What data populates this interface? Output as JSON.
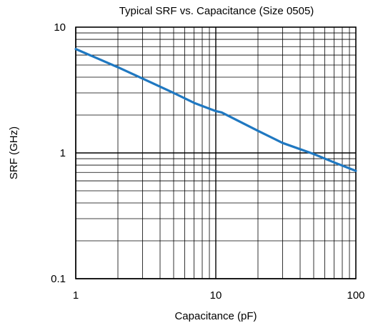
{
  "chart_data": {
    "type": "line",
    "title": "Typical SRF vs. Capacitance (Size 0505)",
    "xlabel": "Capacitance (pF)",
    "ylabel": "SRF (GHz)",
    "xscale": "log",
    "yscale": "log",
    "xlim": [
      1,
      100
    ],
    "ylim": [
      0.1,
      10
    ],
    "grid": true,
    "x_ticks": [
      "1",
      "10",
      "100"
    ],
    "y_ticks": [
      "0.1",
      "1",
      "10"
    ],
    "series": [
      {
        "color": "#1f78c1",
        "x": [
          1,
          2,
          3,
          5,
          7,
          10,
          11,
          20,
          30,
          50,
          70,
          100
        ],
        "y": [
          6.7,
          4.8,
          3.9,
          3.0,
          2.5,
          2.15,
          2.1,
          1.5,
          1.2,
          0.98,
          0.84,
          0.72
        ]
      }
    ]
  }
}
